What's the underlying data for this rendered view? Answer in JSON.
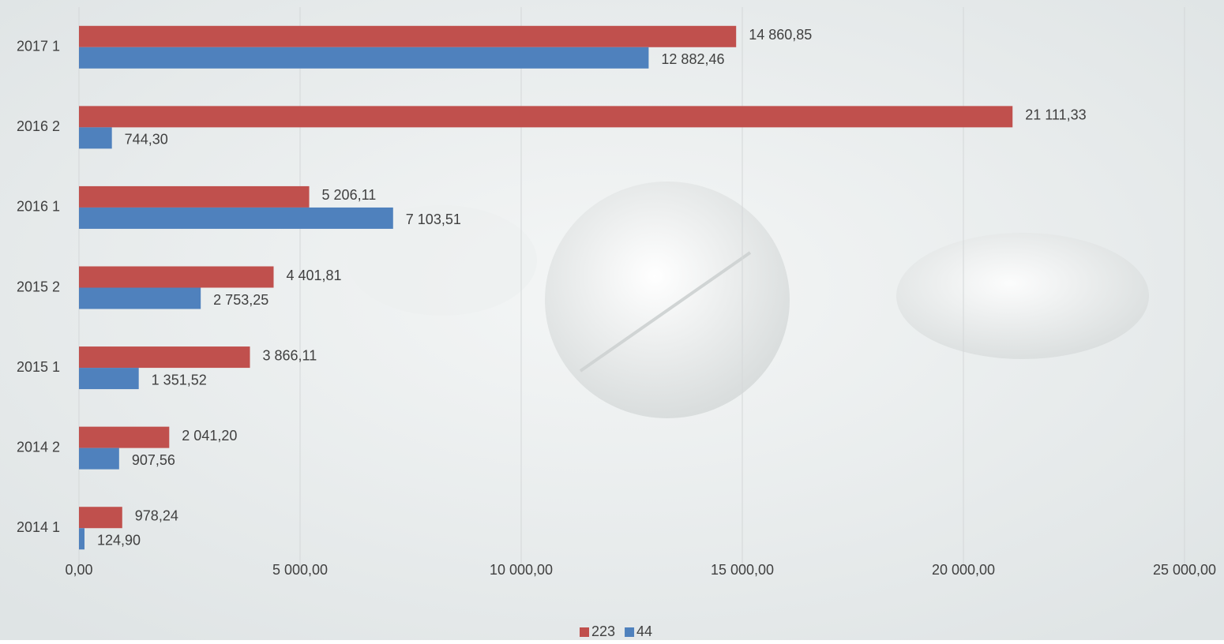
{
  "chart_data": {
    "type": "bar",
    "orientation": "horizontal",
    "categories": [
      "2014 1",
      "2014 2",
      "2015 1",
      "2015 2",
      "2016 1",
      "2016 2",
      "2017 1"
    ],
    "series": [
      {
        "name": "223",
        "color": "#c0504d",
        "values": [
          978.24,
          2041.2,
          3866.11,
          4401.81,
          5206.11,
          21111.33,
          14860.85
        ],
        "value_labels": [
          "978,24",
          "2 041,20",
          "3 866,11",
          "4 401,81",
          "5 206,11",
          "21 111,33",
          "14 860,85"
        ]
      },
      {
        "name": "44",
        "color": "#4f81bd",
        "values": [
          124.9,
          907.56,
          1351.52,
          2753.25,
          7103.51,
          744.3,
          12882.46
        ],
        "value_labels": [
          "124,90",
          "907,56",
          "1 351,52",
          "2 753,25",
          "7 103,51",
          "744,30",
          "12 882,46"
        ]
      }
    ],
    "xlim": [
      0,
      25000
    ],
    "xticks": [
      {
        "value": 0,
        "label": "0,00"
      },
      {
        "value": 5000,
        "label": "5 000,00"
      },
      {
        "value": 10000,
        "label": "10 000,00"
      },
      {
        "value": 15000,
        "label": "15 000,00"
      },
      {
        "value": 20000,
        "label": "20 000,00"
      },
      {
        "value": 25000,
        "label": "25 000,00"
      }
    ],
    "grid": true,
    "legend": "bottom"
  }
}
